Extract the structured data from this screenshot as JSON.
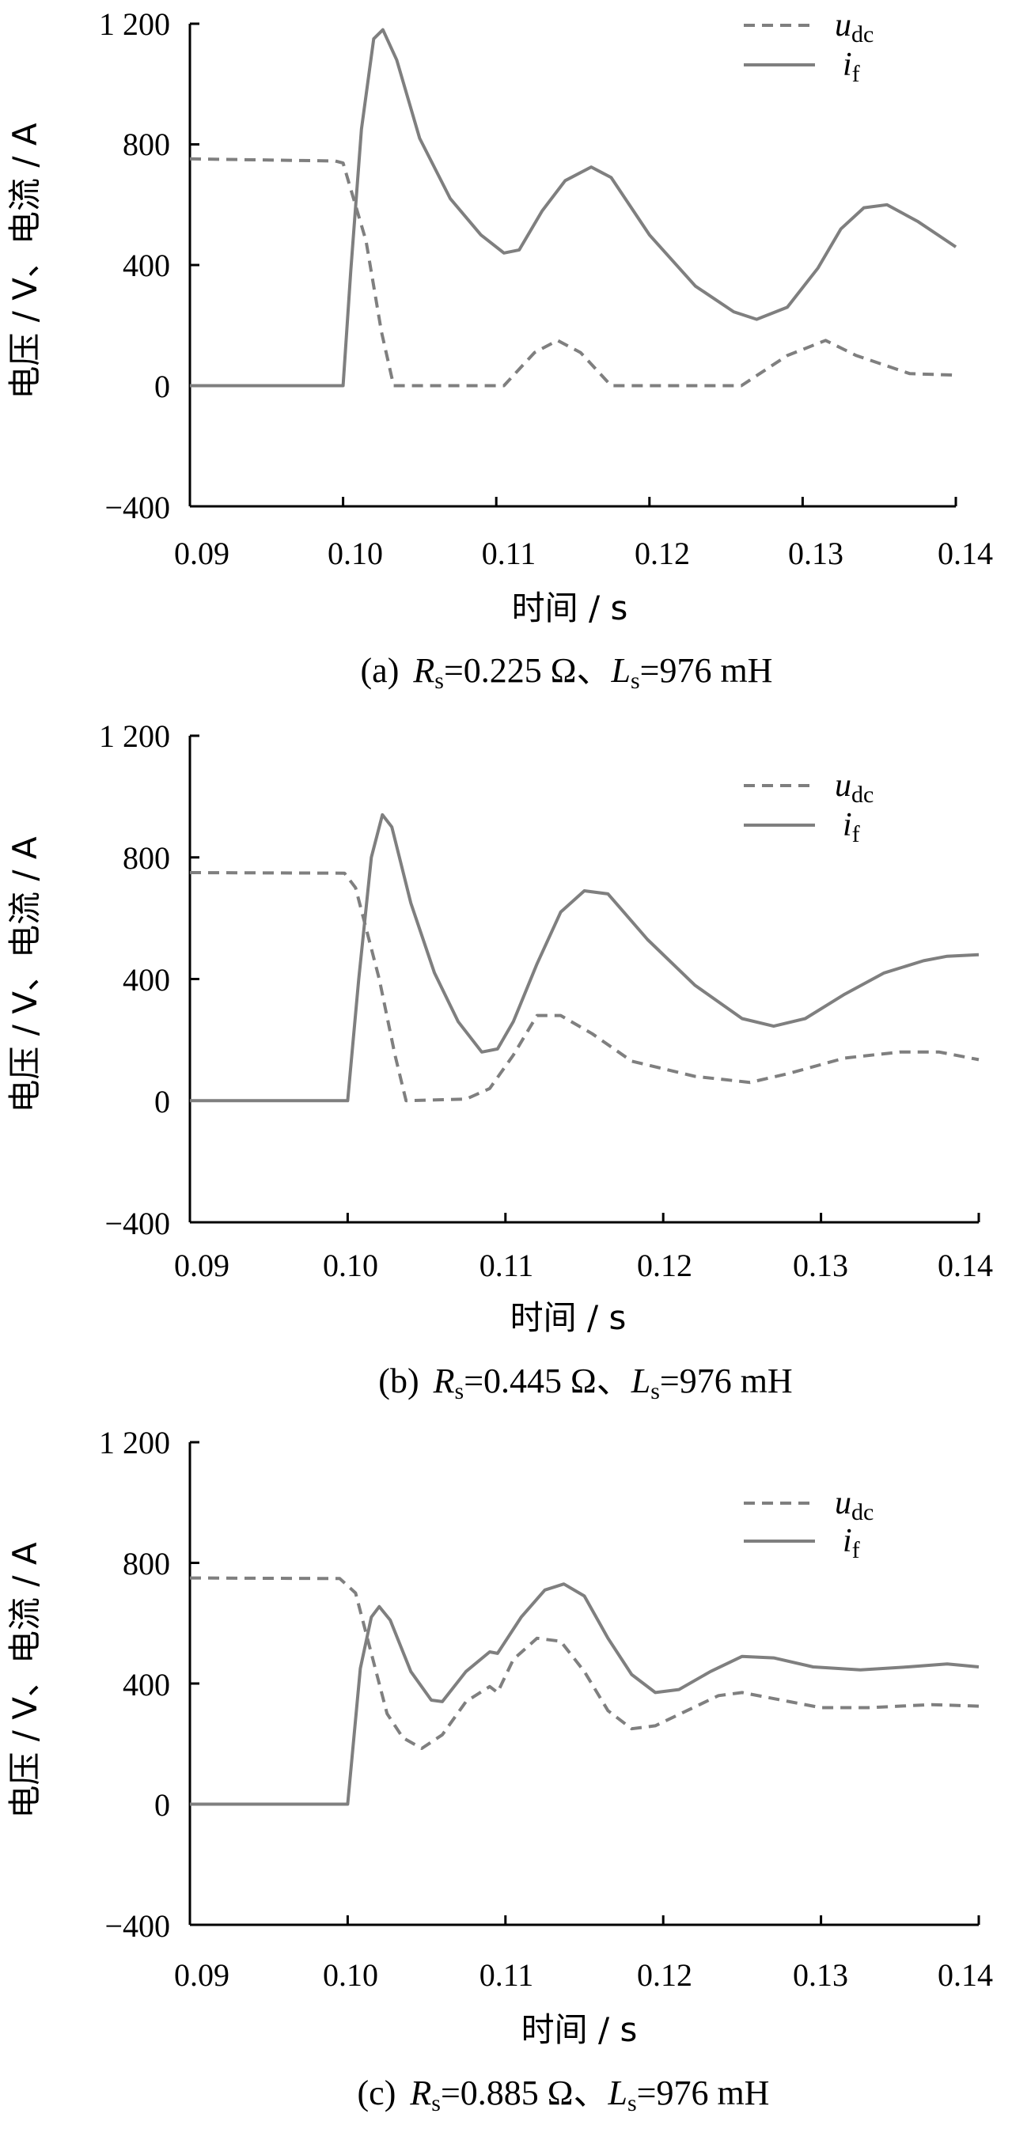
{
  "colors": {
    "line": "#7f7f7f",
    "axis": "#000000"
  },
  "chart_data": [
    {
      "type": "line",
      "caption": {
        "prefix": "(a)",
        "r_sub": "s",
        "r_val": "=0.225 Ω、",
        "l_sub": "s",
        "l_val": "=976 mH"
      },
      "xlabel": "时间 / s",
      "ylabel": "电压 / V、电流 / A",
      "xlim": [
        0.09,
        0.14
      ],
      "ylim": [
        -400,
        1200
      ],
      "xticks": [
        "0.09",
        "0.10",
        "0.11",
        "0.12",
        "0.13",
        "0.14"
      ],
      "yticks": [
        "1 200",
        "800",
        "400",
        "0",
        "−400"
      ],
      "grid": false,
      "legend_position": "top-right",
      "series": [
        {
          "name": "u",
          "name_sub": "dc",
          "style": "dashed",
          "points": [
            [
              0.09,
              752
            ],
            [
              0.0995,
              745
            ],
            [
              0.1,
              738
            ],
            [
              0.1015,
              480
            ],
            [
              0.1025,
              180
            ],
            [
              0.1033,
              0
            ],
            [
              0.1105,
              0
            ],
            [
              0.1125,
              110
            ],
            [
              0.114,
              150
            ],
            [
              0.1155,
              110
            ],
            [
              0.1175,
              0
            ],
            [
              0.126,
              0
            ],
            [
              0.129,
              100
            ],
            [
              0.1315,
              150
            ],
            [
              0.1335,
              100
            ],
            [
              0.137,
              40
            ],
            [
              0.14,
              35
            ]
          ]
        },
        {
          "name": "i",
          "name_sub": "f",
          "style": "solid",
          "points": [
            [
              0.09,
              0
            ],
            [
              0.0999,
              0
            ],
            [
              0.1,
              0
            ],
            [
              0.1005,
              380
            ],
            [
              0.1012,
              850
            ],
            [
              0.102,
              1150
            ],
            [
              0.1026,
              1180
            ],
            [
              0.1035,
              1080
            ],
            [
              0.105,
              820
            ],
            [
              0.107,
              620
            ],
            [
              0.109,
              500
            ],
            [
              0.1105,
              440
            ],
            [
              0.1115,
              450
            ],
            [
              0.113,
              580
            ],
            [
              0.1145,
              680
            ],
            [
              0.1162,
              725
            ],
            [
              0.1175,
              690
            ],
            [
              0.12,
              500
            ],
            [
              0.123,
              330
            ],
            [
              0.1255,
              245
            ],
            [
              0.127,
              220
            ],
            [
              0.129,
              260
            ],
            [
              0.131,
              390
            ],
            [
              0.1325,
              520
            ],
            [
              0.134,
              590
            ],
            [
              0.1355,
              600
            ],
            [
              0.1375,
              545
            ],
            [
              0.14,
              460
            ]
          ]
        }
      ]
    },
    {
      "type": "line",
      "caption": {
        "prefix": "(b)",
        "r_sub": "s",
        "r_val": "=0.445 Ω、",
        "l_sub": "s",
        "l_val": "=976 mH"
      },
      "xlabel": "时间 / s",
      "ylabel": "电压 / V、电流 / A",
      "xlim": [
        0.09,
        0.14
      ],
      "ylim": [
        -400,
        1200
      ],
      "xticks": [
        "0.09",
        "0.10",
        "0.11",
        "0.12",
        "0.13",
        "0.14"
      ],
      "yticks": [
        "1 200",
        "800",
        "400",
        "0",
        "−400"
      ],
      "grid": false,
      "legend_position": "top-right",
      "series": [
        {
          "name": "u",
          "name_sub": "dc",
          "style": "dashed",
          "points": [
            [
              0.09,
              750
            ],
            [
              0.0998,
              748
            ],
            [
              0.1005,
              700
            ],
            [
              0.102,
              400
            ],
            [
              0.103,
              150
            ],
            [
              0.1037,
              0
            ],
            [
              0.1075,
              5
            ],
            [
              0.109,
              40
            ],
            [
              0.1105,
              150
            ],
            [
              0.112,
              280
            ],
            [
              0.1135,
              280
            ],
            [
              0.1155,
              220
            ],
            [
              0.118,
              130
            ],
            [
              0.122,
              80
            ],
            [
              0.1255,
              60
            ],
            [
              0.128,
              90
            ],
            [
              0.1315,
              140
            ],
            [
              0.135,
              160
            ],
            [
              0.1375,
              160
            ],
            [
              0.14,
              135
            ]
          ]
        },
        {
          "name": "i",
          "name_sub": "f",
          "style": "solid",
          "points": [
            [
              0.09,
              0
            ],
            [
              0.0999,
              0
            ],
            [
              0.1,
              0
            ],
            [
              0.1007,
              400
            ],
            [
              0.1015,
              800
            ],
            [
              0.1022,
              940
            ],
            [
              0.1028,
              900
            ],
            [
              0.104,
              650
            ],
            [
              0.1055,
              420
            ],
            [
              0.107,
              260
            ],
            [
              0.1085,
              160
            ],
            [
              0.1095,
              170
            ],
            [
              0.1105,
              260
            ],
            [
              0.112,
              450
            ],
            [
              0.1135,
              620
            ],
            [
              0.115,
              690
            ],
            [
              0.1165,
              680
            ],
            [
              0.119,
              530
            ],
            [
              0.122,
              380
            ],
            [
              0.125,
              270
            ],
            [
              0.127,
              245
            ],
            [
              0.129,
              270
            ],
            [
              0.1315,
              350
            ],
            [
              0.134,
              420
            ],
            [
              0.1365,
              460
            ],
            [
              0.138,
              475
            ],
            [
              0.14,
              480
            ]
          ]
        }
      ]
    },
    {
      "type": "line",
      "caption": {
        "prefix": "(c)",
        "r_sub": "s",
        "r_val": "=0.885 Ω、",
        "l_sub": "s",
        "l_val": "=976 mH"
      },
      "xlabel": "时间 / s",
      "ylabel": "电压 / V、电流 / A",
      "xlim": [
        0.09,
        0.14
      ],
      "ylim": [
        -400,
        1200
      ],
      "xticks": [
        "0.09",
        "0.10",
        "0.11",
        "0.12",
        "0.13",
        "0.14"
      ],
      "yticks": [
        "1 200",
        "800",
        "400",
        "0",
        "−400"
      ],
      "grid": false,
      "legend_position": "top-right",
      "series": [
        {
          "name": "u",
          "name_sub": "dc",
          "style": "dashed",
          "points": [
            [
              0.09,
              750
            ],
            [
              0.0995,
              748
            ],
            [
              0.1005,
              700
            ],
            [
              0.1015,
              500
            ],
            [
              0.1025,
              300
            ],
            [
              0.1035,
              220
            ],
            [
              0.1047,
              185
            ],
            [
              0.106,
              230
            ],
            [
              0.1075,
              340
            ],
            [
              0.109,
              390
            ],
            [
              0.1095,
              370
            ],
            [
              0.1105,
              480
            ],
            [
              0.112,
              550
            ],
            [
              0.1135,
              540
            ],
            [
              0.115,
              440
            ],
            [
              0.1165,
              310
            ],
            [
              0.118,
              250
            ],
            [
              0.1195,
              260
            ],
            [
              0.1215,
              310
            ],
            [
              0.1235,
              360
            ],
            [
              0.125,
              370
            ],
            [
              0.128,
              340
            ],
            [
              0.13,
              320
            ],
            [
              0.133,
              320
            ],
            [
              0.137,
              330
            ],
            [
              0.14,
              325
            ]
          ]
        },
        {
          "name": "i",
          "name_sub": "f",
          "style": "solid",
          "points": [
            [
              0.09,
              0
            ],
            [
              0.0999,
              0
            ],
            [
              0.1,
              0
            ],
            [
              0.1008,
              450
            ],
            [
              0.1015,
              620
            ],
            [
              0.102,
              655
            ],
            [
              0.1027,
              610
            ],
            [
              0.104,
              440
            ],
            [
              0.1053,
              345
            ],
            [
              0.106,
              340
            ],
            [
              0.1075,
              440
            ],
            [
              0.109,
              505
            ],
            [
              0.1095,
              500
            ],
            [
              0.111,
              620
            ],
            [
              0.1125,
              710
            ],
            [
              0.1137,
              730
            ],
            [
              0.115,
              690
            ],
            [
              0.1165,
              550
            ],
            [
              0.118,
              430
            ],
            [
              0.1195,
              370
            ],
            [
              0.121,
              380
            ],
            [
              0.123,
              440
            ],
            [
              0.125,
              490
            ],
            [
              0.127,
              485
            ],
            [
              0.1295,
              455
            ],
            [
              0.1325,
              445
            ],
            [
              0.1355,
              455
            ],
            [
              0.138,
              465
            ],
            [
              0.14,
              455
            ]
          ]
        }
      ]
    }
  ]
}
